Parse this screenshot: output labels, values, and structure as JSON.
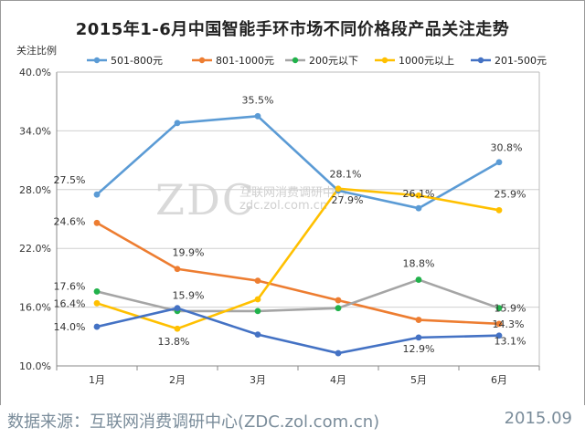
{
  "chart_data": {
    "type": "line",
    "title": "2015年1-6月中国智能手环市场不同价格段产品关注走势",
    "ylabel": "关注比例",
    "xlabel": "",
    "categories": [
      "1月",
      "2月",
      "3月",
      "4月",
      "5月",
      "6月"
    ],
    "ylim": [
      10,
      40
    ],
    "yticks": [
      "10.0%",
      "16.0%",
      "22.0%",
      "28.0%",
      "34.0%",
      "40.0%"
    ],
    "ytick_values": [
      10,
      16,
      22,
      28,
      34,
      40
    ],
    "legend_position": "top",
    "series": [
      {
        "name": "501-800元",
        "color": "#5b9bd5",
        "values": [
          27.5,
          34.8,
          35.5,
          27.9,
          26.1,
          30.8
        ]
      },
      {
        "name": "801-1000元",
        "color": "#ed7d31",
        "values": [
          24.6,
          19.9,
          18.7,
          16.7,
          14.7,
          14.3
        ]
      },
      {
        "name": "200元以下",
        "color": "#a5a5a5",
        "values": [
          17.6,
          15.6,
          15.6,
          15.9,
          18.8,
          15.9
        ]
      },
      {
        "name": "1000元以上",
        "color": "#ffc000",
        "values": [
          16.4,
          13.8,
          16.8,
          28.1,
          27.4,
          25.9
        ]
      },
      {
        "name": "201-500元",
        "color": "#4472c4",
        "values": [
          14.0,
          15.9,
          13.2,
          11.3,
          12.9,
          13.1
        ]
      }
    ],
    "marker_colors": {
      "200元以下_markers": "#21b24b"
    },
    "data_labels": [
      {
        "text": "27.5%",
        "x": "1月",
        "y": 27.5
      },
      {
        "text": "35.5%",
        "x": "3月",
        "y": 35.5
      },
      {
        "text": "27.9%",
        "x": "4月",
        "y": 27.9
      },
      {
        "text": "26.1%",
        "x": "5月",
        "y": 26.1
      },
      {
        "text": "30.8%",
        "x": "6月",
        "y": 30.8
      },
      {
        "text": "24.6%",
        "x": "1月",
        "y": 24.6
      },
      {
        "text": "19.9%",
        "x": "2月",
        "y": 19.9
      },
      {
        "text": "14.3%",
        "x": "6月",
        "y": 14.3
      },
      {
        "text": "17.6%",
        "x": "1月",
        "y": 17.6
      },
      {
        "text": "18.8%",
        "x": "5月",
        "y": 18.8
      },
      {
        "text": "15.9%",
        "x": "6月",
        "y": 15.9
      },
      {
        "text": "16.4%",
        "x": "1月",
        "y": 16.4
      },
      {
        "text": "13.8%",
        "x": "2月",
        "y": 13.8
      },
      {
        "text": "28.1%",
        "x": "4月",
        "y": 28.1
      },
      {
        "text": "25.9%",
        "x": "6月",
        "y": 25.9
      },
      {
        "text": "14.0%",
        "x": "1月",
        "y": 14.0
      },
      {
        "text": "15.9%",
        "x": "2月",
        "y": 15.9
      },
      {
        "text": "12.9%",
        "x": "5月",
        "y": 12.9
      },
      {
        "text": "13.1%",
        "x": "6月",
        "y": 13.1
      }
    ]
  },
  "watermark": {
    "main": "ZDC",
    "line1": "互联网消费调研中心",
    "line2": "zdc.zol.com.cn"
  },
  "footer": {
    "source": "数据来源：互联网消费调研中心(ZDC.zol.com.cn)",
    "date": "2015.09"
  }
}
